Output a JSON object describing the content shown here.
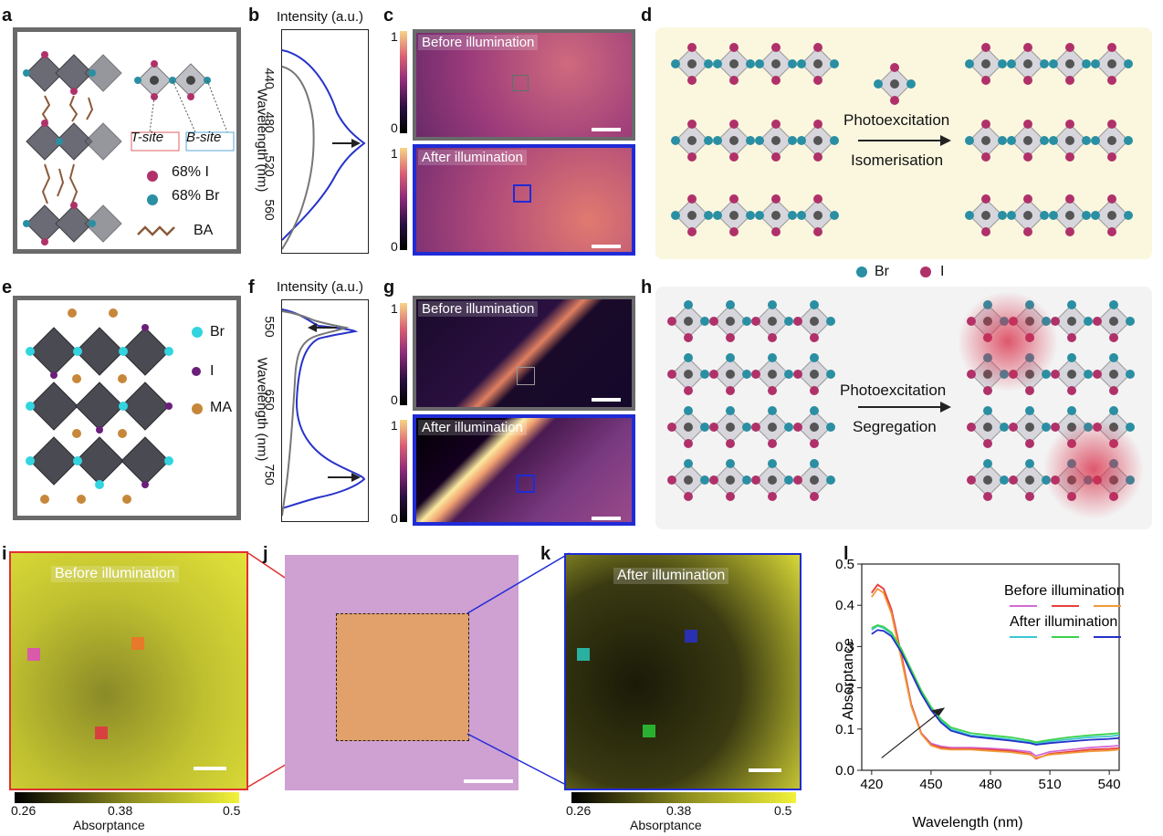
{
  "panels": {
    "a": {
      "letter": "a",
      "t_site": "T-site",
      "b_site": "B-site",
      "legend_i": "68% I",
      "legend_br": "68% Br",
      "legend_ba": "BA"
    },
    "b": {
      "letter": "b",
      "intensity": "Intensity (a.u.)",
      "ylabel": "Wavelength (nm)",
      "ticks": [
        "440",
        "480",
        "520",
        "560"
      ]
    },
    "c": {
      "letter": "c",
      "before": "Before illumination",
      "after": "After illumination",
      "cb_top": "1",
      "cb_bottom": "0"
    },
    "d": {
      "letter": "d",
      "photo": "Photoexcitation",
      "process": "Isomerisation",
      "legend_br": "Br",
      "legend_i": "I"
    },
    "e": {
      "letter": "e",
      "legend_br": "Br",
      "legend_i": "I",
      "legend_ma": "MA"
    },
    "f": {
      "letter": "f",
      "intensity": "Intensity (a.u.)",
      "ylabel": "Wavelength (nm)",
      "ticks": [
        "550",
        "650",
        "750"
      ]
    },
    "g": {
      "letter": "g",
      "before": "Before illumination",
      "after": "After illumination",
      "cb_top": "1",
      "cb_bottom": "0"
    },
    "h": {
      "letter": "h",
      "photo": "Photoexcitation",
      "process": "Segregation"
    },
    "i": {
      "letter": "i",
      "label": "Before illumination",
      "cb_ticks": [
        "0.26",
        "0.38",
        "0.5"
      ],
      "cb_label": "Absorptance"
    },
    "j": {
      "letter": "j"
    },
    "k": {
      "letter": "k",
      "label": "After illumination",
      "cb_ticks": [
        "0.26",
        "0.38",
        "0.5"
      ],
      "cb_label": "Absorptance"
    },
    "l": {
      "letter": "l",
      "before": "Before illumination",
      "after": "After illumination",
      "ylabel": "Absorptance",
      "xlabel": "Wavelength (nm)"
    }
  },
  "chart_data": {
    "type": "line",
    "xlabel": "Wavelength (nm)",
    "ylabel": "Absorptance",
    "xlim": [
      415,
      545
    ],
    "ylim": [
      0.0,
      0.5
    ],
    "xticks": [
      420,
      450,
      480,
      510,
      540
    ],
    "yticks": [
      0.0,
      0.1,
      0.2,
      0.3,
      0.4,
      0.5
    ],
    "x": [
      420,
      423,
      426,
      430,
      435,
      440,
      445,
      450,
      455,
      460,
      470,
      480,
      490,
      500,
      503,
      510,
      520,
      530,
      540,
      545
    ],
    "series": [
      {
        "group": "before",
        "color": "#d36ad6",
        "values": [
          0.43,
          0.45,
          0.44,
          0.39,
          0.28,
          0.16,
          0.09,
          0.065,
          0.058,
          0.055,
          0.055,
          0.053,
          0.05,
          0.045,
          0.035,
          0.045,
          0.05,
          0.055,
          0.058,
          0.06
        ]
      },
      {
        "group": "before",
        "color": "#e8413a",
        "values": [
          0.43,
          0.45,
          0.44,
          0.39,
          0.28,
          0.16,
          0.09,
          0.062,
          0.055,
          0.052,
          0.052,
          0.05,
          0.047,
          0.04,
          0.028,
          0.04,
          0.045,
          0.05,
          0.052,
          0.054
        ]
      },
      {
        "group": "before",
        "color": "#f09a3a",
        "values": [
          0.42,
          0.44,
          0.43,
          0.38,
          0.27,
          0.155,
          0.088,
          0.06,
          0.052,
          0.05,
          0.05,
          0.047,
          0.044,
          0.038,
          0.03,
          0.038,
          0.042,
          0.046,
          0.048,
          0.05
        ]
      },
      {
        "group": "after",
        "color": "#3cc6d0",
        "values": [
          0.34,
          0.35,
          0.345,
          0.33,
          0.29,
          0.24,
          0.19,
          0.15,
          0.12,
          0.1,
          0.085,
          0.08,
          0.075,
          0.068,
          0.065,
          0.07,
          0.075,
          0.08,
          0.082,
          0.085
        ]
      },
      {
        "group": "after",
        "color": "#3ad24a",
        "values": [
          0.345,
          0.352,
          0.348,
          0.334,
          0.294,
          0.244,
          0.194,
          0.154,
          0.124,
          0.104,
          0.09,
          0.085,
          0.08,
          0.072,
          0.068,
          0.074,
          0.08,
          0.085,
          0.088,
          0.09
        ]
      },
      {
        "group": "after",
        "color": "#2530c8",
        "values": [
          0.33,
          0.34,
          0.338,
          0.325,
          0.286,
          0.236,
          0.186,
          0.146,
          0.116,
          0.096,
          0.082,
          0.077,
          0.072,
          0.066,
          0.062,
          0.066,
          0.07,
          0.074,
          0.076,
          0.078
        ]
      }
    ]
  }
}
